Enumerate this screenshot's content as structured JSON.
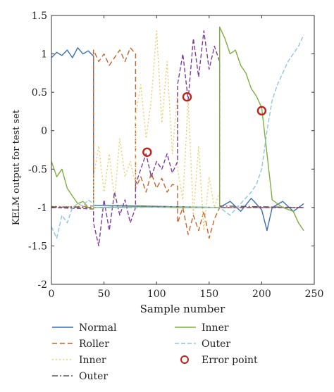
{
  "chart_data": {
    "type": "line",
    "xlabel": "Sample number",
    "ylabel": "KELM output for test set",
    "xlim": [
      0,
      250
    ],
    "ylim": [
      -2,
      1.5
    ],
    "xticks": [
      "0",
      "50",
      "100",
      "150",
      "200",
      "250"
    ],
    "yticks": [
      "-2",
      "-1.5",
      "-1",
      "-0.5",
      "0",
      "0.5",
      "1",
      "1.5"
    ],
    "grid": false,
    "legend_placement": "below",
    "series": [
      {
        "name": "Normal",
        "color": "#3a6fb0",
        "dash": "solid",
        "segments": [
          [
            [
              0,
              0.95
            ],
            [
              5,
              1.02
            ],
            [
              10,
              0.98
            ],
            [
              15,
              1.05
            ],
            [
              20,
              0.95
            ],
            [
              25,
              1.08
            ],
            [
              30,
              1.0
            ],
            [
              35,
              1.04
            ],
            [
              40,
              0.97
            ]
          ],
          [
            [
              40,
              -0.97
            ],
            [
              80,
              -0.98
            ]
          ],
          [
            [
              80,
              -0.98
            ],
            [
              120,
              -0.99
            ]
          ],
          [
            [
              120,
              -0.99
            ],
            [
              160,
              -1.0
            ]
          ],
          [
            [
              160,
              -1.0
            ],
            [
              170,
              -0.92
            ],
            [
              180,
              -1.05
            ],
            [
              190,
              -0.88
            ],
            [
              200,
              -1.03
            ],
            [
              205,
              -1.3
            ],
            [
              210,
              -1.0
            ],
            [
              220,
              -0.92
            ],
            [
              230,
              -1.05
            ],
            [
              240,
              -0.95
            ]
          ]
        ]
      },
      {
        "name": "Roller",
        "color": "#c8622a",
        "dash": "7,4",
        "segments": [
          [
            [
              0,
              -1.0
            ],
            [
              40,
              -0.98
            ]
          ],
          [
            [
              40,
              1.05
            ],
            [
              45,
              0.9
            ],
            [
              50,
              1.0
            ],
            [
              55,
              0.85
            ],
            [
              60,
              0.95
            ],
            [
              65,
              1.05
            ],
            [
              70,
              0.9
            ],
            [
              75,
              1.08
            ],
            [
              80,
              1.0
            ]
          ],
          [
            [
              80,
              -0.75
            ],
            [
              85,
              -0.6
            ],
            [
              90,
              -0.8
            ],
            [
              95,
              -0.55
            ],
            [
              100,
              -0.75
            ],
            [
              105,
              -0.62
            ],
            [
              110,
              -0.8
            ],
            [
              115,
              -0.7
            ],
            [
              120,
              -0.72
            ]
          ],
          [
            [
              120,
              -1.2
            ],
            [
              125,
              -1.0
            ],
            [
              130,
              -1.35
            ],
            [
              135,
              -1.1
            ],
            [
              140,
              -1.3
            ],
            [
              145,
              -1.05
            ],
            [
              150,
              -1.4
            ],
            [
              155,
              -1.15
            ],
            [
              160,
              -1.0
            ]
          ],
          [
            [
              160,
              -1.0
            ],
            [
              240,
              -1.0
            ]
          ]
        ]
      },
      {
        "name": "Inner",
        "color": "#e8cf6a",
        "dash": "2,3",
        "segments": [
          [
            [
              0,
              -0.98
            ],
            [
              40,
              -1.0
            ]
          ],
          [
            [
              40,
              -0.6
            ],
            [
              45,
              -0.2
            ],
            [
              50,
              -0.8
            ],
            [
              55,
              -0.3
            ],
            [
              60,
              -0.9
            ],
            [
              65,
              -0.1
            ],
            [
              70,
              -0.6
            ],
            [
              75,
              -0.4
            ],
            [
              80,
              -0.7
            ]
          ],
          [
            [
              80,
              0.2
            ],
            [
              85,
              0.6
            ],
            [
              90,
              -0.1
            ],
            [
              95,
              0.4
            ],
            [
              100,
              1.3
            ],
            [
              105,
              0.1
            ],
            [
              110,
              0.9
            ],
            [
              115,
              -0.3
            ],
            [
              120,
              0.5
            ]
          ],
          [
            [
              120,
              -0.5
            ],
            [
              125,
              -0.9
            ],
            [
              130,
              0.4
            ],
            [
              135,
              -1.1
            ],
            [
              140,
              -0.2
            ],
            [
              145,
              -1.3
            ],
            [
              150,
              -0.6
            ],
            [
              155,
              -1.0
            ],
            [
              160,
              -0.8
            ]
          ],
          [
            [
              160,
              -1.0
            ],
            [
              240,
              -1.0
            ]
          ]
        ]
      },
      {
        "name": "Outer",
        "color": "#555555",
        "dash": "8,3,2,3",
        "segments": [
          [
            [
              0,
              -0.99
            ],
            [
              40,
              -1.0
            ]
          ],
          [
            [
              40,
              -1.0
            ],
            [
              80,
              -0.99
            ]
          ],
          [
            [
              80,
              -0.98
            ],
            [
              120,
              -0.99
            ]
          ],
          [
            [
              120,
              -0.99
            ],
            [
              160,
              -1.0
            ]
          ],
          [
            [
              160,
              -0.98
            ],
            [
              240,
              -1.0
            ]
          ]
        ]
      },
      {
        "name": "Inner",
        "color": "#7d3d9e",
        "dash": "6,3",
        "segments": [
          [
            [
              0,
              -1.0
            ],
            [
              40,
              -1.02
            ]
          ],
          [
            [
              40,
              -1.2
            ],
            [
              45,
              -1.5
            ],
            [
              50,
              -0.9
            ],
            [
              55,
              -1.3
            ],
            [
              60,
              -0.8
            ],
            [
              65,
              -1.1
            ],
            [
              70,
              -0.9
            ],
            [
              75,
              -1.2
            ],
            [
              80,
              -1.0
            ]
          ],
          [
            [
              80,
              -0.7
            ],
            [
              85,
              -0.5
            ],
            [
              90,
              -0.3
            ],
            [
              95,
              -0.6
            ],
            [
              100,
              -0.4
            ],
            [
              105,
              -0.5
            ],
            [
              110,
              -0.3
            ],
            [
              115,
              -0.55
            ],
            [
              120,
              -0.4
            ]
          ],
          [
            [
              120,
              0.6
            ],
            [
              125,
              1.0
            ],
            [
              130,
              0.4
            ],
            [
              135,
              1.2
            ],
            [
              140,
              0.7
            ],
            [
              145,
              1.3
            ],
            [
              150,
              0.8
            ],
            [
              155,
              1.1
            ],
            [
              160,
              0.9
            ]
          ],
          [
            [
              160,
              -1.0
            ],
            [
              240,
              -1.0
            ]
          ]
        ]
      },
      {
        "name": "Inner",
        "color": "#7fae3e",
        "dash": "solid",
        "segments": [
          [
            [
              0,
              -0.4
            ],
            [
              5,
              -0.6
            ],
            [
              10,
              -0.5
            ],
            [
              15,
              -0.75
            ],
            [
              20,
              -0.85
            ],
            [
              25,
              -0.95
            ],
            [
              30,
              -0.92
            ],
            [
              35,
              -1.0
            ],
            [
              40,
              -1.02
            ]
          ],
          [
            [
              40,
              -1.0
            ],
            [
              80,
              -0.99
            ]
          ],
          [
            [
              80,
              -0.99
            ],
            [
              120,
              -1.0
            ]
          ],
          [
            [
              120,
              -1.0
            ],
            [
              160,
              -1.0
            ]
          ],
          [
            [
              160,
              1.35
            ],
            [
              165,
              1.2
            ],
            [
              170,
              1.0
            ],
            [
              175,
              1.05
            ],
            [
              180,
              0.85
            ],
            [
              185,
              0.75
            ],
            [
              190,
              0.55
            ],
            [
              195,
              0.45
            ],
            [
              200,
              0.3
            ],
            [
              205,
              -0.3
            ],
            [
              210,
              -0.9
            ],
            [
              220,
              -1.0
            ],
            [
              230,
              -1.05
            ],
            [
              235,
              -1.2
            ],
            [
              240,
              -1.3
            ]
          ]
        ]
      },
      {
        "name": "Outer",
        "color": "#8ec5e0",
        "dash": "6,3",
        "segments": [
          [
            [
              0,
              -1.25
            ],
            [
              5,
              -1.4
            ],
            [
              10,
              -1.1
            ],
            [
              15,
              -1.2
            ],
            [
              20,
              -1.0
            ],
            [
              25,
              -0.95
            ],
            [
              30,
              -0.98
            ],
            [
              35,
              -0.9
            ],
            [
              40,
              -0.95
            ]
          ],
          [
            [
              40,
              -1.0
            ],
            [
              80,
              -1.0
            ]
          ],
          [
            [
              80,
              -1.0
            ],
            [
              120,
              -0.99
            ]
          ],
          [
            [
              120,
              -0.99
            ],
            [
              160,
              -1.0
            ]
          ],
          [
            [
              160,
              -1.0
            ],
            [
              170,
              -1.1
            ],
            [
              180,
              -0.95
            ],
            [
              190,
              -0.8
            ],
            [
              195,
              -0.7
            ],
            [
              200,
              -0.5
            ],
            [
              205,
              0.0
            ],
            [
              210,
              0.4
            ],
            [
              215,
              0.6
            ],
            [
              220,
              0.75
            ],
            [
              225,
              0.9
            ],
            [
              230,
              1.0
            ],
            [
              235,
              1.1
            ],
            [
              240,
              1.25
            ]
          ]
        ]
      }
    ],
    "error_points": {
      "name": "Error point",
      "color": "#c0221a",
      "points": [
        [
          91,
          -0.28
        ],
        [
          129,
          0.44
        ],
        [
          200,
          0.26
        ]
      ]
    },
    "legend": [
      {
        "label": "Normal",
        "color": "#3a6fb0",
        "dash": "solid",
        "column": 0
      },
      {
        "label": "Roller",
        "color": "#c8622a",
        "dash": "7,4",
        "column": 0
      },
      {
        "label": "Inner",
        "color": "#e8cf6a",
        "dash": "2,3",
        "column": 0
      },
      {
        "label": "Outer",
        "color": "#555555",
        "dash": "8,3,2,3",
        "column": 0
      },
      {
        "label": "Inner",
        "color": "#7fae3e",
        "dash": "solid",
        "column": 1
      },
      {
        "label": "Outer",
        "color": "#8ec5e0",
        "dash": "6,3",
        "column": 1
      },
      {
        "label": "Error point",
        "color": "#c0221a",
        "marker": "circle",
        "column": 1
      }
    ]
  }
}
